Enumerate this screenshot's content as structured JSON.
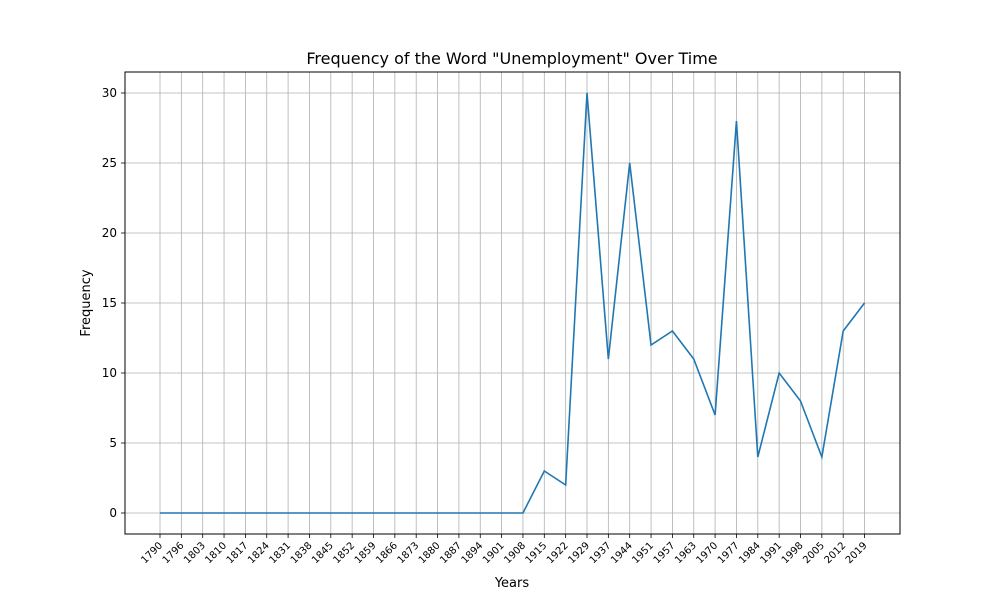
{
  "chart_data": {
    "type": "line",
    "title": "Frequency of the Word \"Unemployment\" Over Time",
    "xlabel": "Years",
    "ylabel": "Frequency",
    "x": [
      "1790",
      "1796",
      "1803",
      "1810",
      "1817",
      "1824",
      "1831",
      "1838",
      "1845",
      "1852",
      "1859",
      "1866",
      "1873",
      "1880",
      "1887",
      "1894",
      "1901",
      "1908",
      "1915",
      "1922",
      "1929",
      "1937",
      "1944",
      "1951",
      "1957",
      "1963",
      "1970",
      "1977",
      "1984",
      "1991",
      "1998",
      "2005",
      "2012",
      "2019"
    ],
    "values": [
      0,
      0,
      0,
      0,
      0,
      0,
      0,
      0,
      0,
      0,
      0,
      0,
      0,
      0,
      0,
      0,
      0,
      0,
      3,
      2,
      30,
      11,
      25,
      12,
      13,
      11,
      7,
      28,
      4,
      10,
      8,
      4,
      13,
      15
    ],
    "yticks": [
      0,
      5,
      10,
      15,
      20,
      25,
      30
    ],
    "ylim": [
      -1.5,
      31.5
    ],
    "grid": true,
    "line_color": "#1f77b4"
  }
}
